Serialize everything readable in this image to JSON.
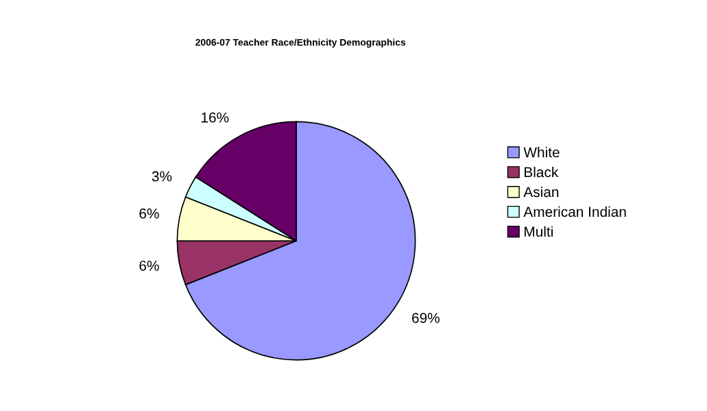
{
  "chart_data": {
    "type": "pie",
    "title": "2006-07 Teacher Race/Ethnicity Demographics",
    "categories": [
      "White",
      "Black",
      "Asian",
      "American Indian",
      "Multi"
    ],
    "values": [
      69,
      6,
      6,
      3,
      16
    ],
    "colors": [
      "#9999ff",
      "#993366",
      "#ffffcc",
      "#ccffff",
      "#660066"
    ],
    "value_labels": [
      "69%",
      "6%",
      "6%",
      "3%",
      "16%"
    ],
    "legend": "right"
  }
}
